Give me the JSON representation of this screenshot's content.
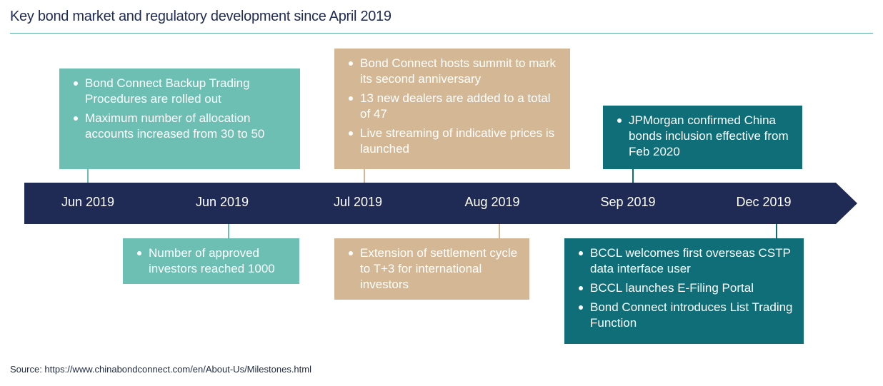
{
  "title": "Key bond market and regulatory development since April 2019",
  "colors": {
    "arrow": "#1f2a55",
    "light_teal": "#6cbfb2",
    "tan": "#d4b896",
    "dark_teal": "#0f6e78"
  },
  "timeline": {
    "dates": [
      "Jun 2019",
      "Jun 2019",
      "Jul 2019",
      "Aug 2019",
      "Sep 2019",
      "Dec 2019"
    ]
  },
  "events": {
    "top1": [
      "Bond Connect Backup Trading Procedures are rolled out",
      "Maximum number of allocation accounts increased from 30 to 50"
    ],
    "bottom1": [
      "Number of approved investors reached 1000"
    ],
    "top2": [
      "Bond Connect hosts summit to mark its second anniversary",
      "13 new dealers are added to a total of 47",
      "Live streaming of indicative prices is launched"
    ],
    "bottom2": [
      "Extension of settlement cycle to T+3 for international investors"
    ],
    "top3": [
      "JPMorgan confirmed China bonds inclusion effective from Feb 2020"
    ],
    "bottom3": [
      "BCCL welcomes first overseas CSTP data interface user",
      "BCCL launches E-Filing Portal",
      "Bond Connect introduces List Trading Function"
    ]
  },
  "source": "Source: https://www.chinabondconnect.com/en/About-Us/Milestones.html"
}
